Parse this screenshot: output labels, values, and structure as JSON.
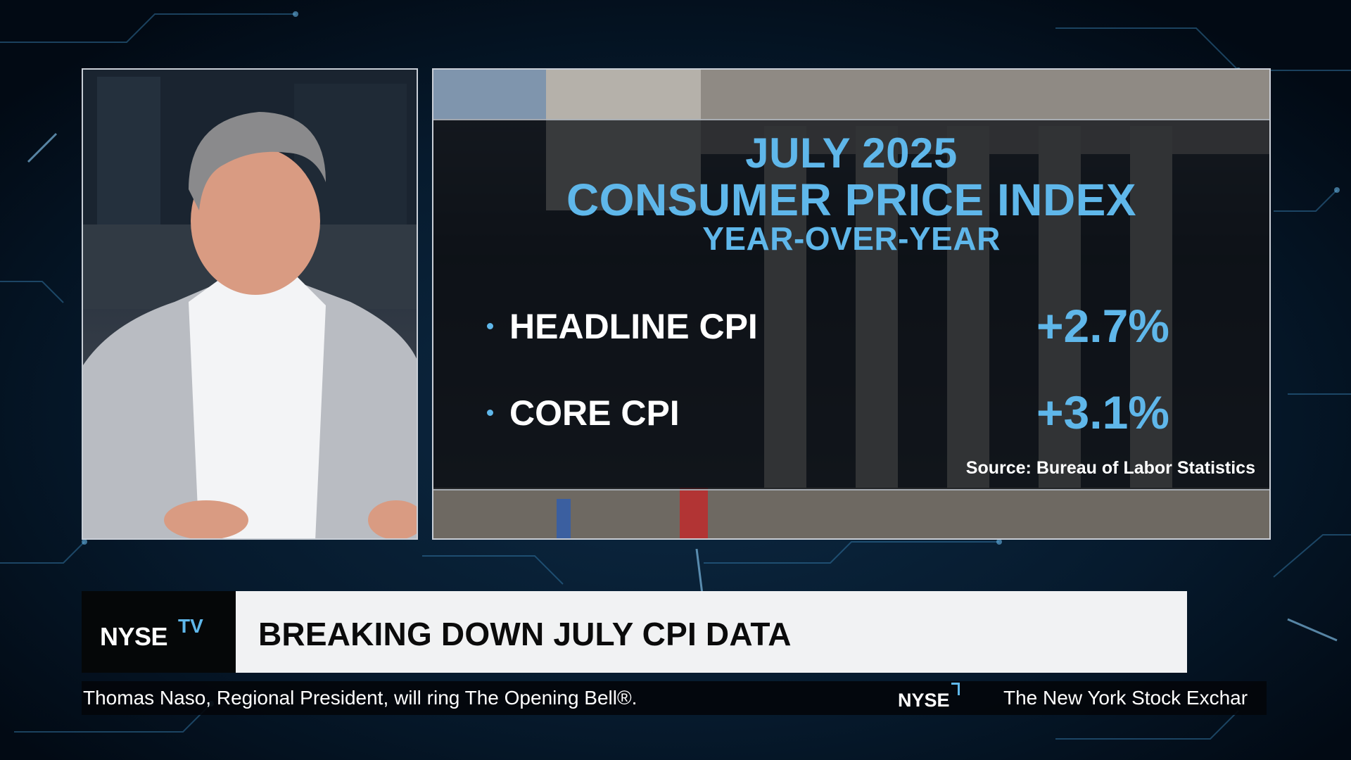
{
  "graphic": {
    "title_line1": "JULY 2025",
    "title_line2": "CONSUMER PRICE INDEX",
    "title_line3": "YEAR-OVER-YEAR",
    "metrics": [
      {
        "label": "HEADLINE CPI",
        "value": "+2.7%"
      },
      {
        "label": "CORE CPI",
        "value": "+3.1%"
      }
    ],
    "source": "Source: Bureau of Labor Statistics"
  },
  "lower_third": {
    "logo_text": "NYSE",
    "logo_superscript": "TV",
    "headline": "BREAKING DOWN JULY CPI DATA"
  },
  "ticker": {
    "left_text": "Thomas Naso, Regional President, will ring The Opening Bell®.",
    "logo_text": "NYSE",
    "right_text": "The New York Stock Exchar"
  },
  "colors": {
    "accent": "#5fb7ea",
    "background": "#04101d",
    "headline_bar": "#f1f2f3"
  }
}
